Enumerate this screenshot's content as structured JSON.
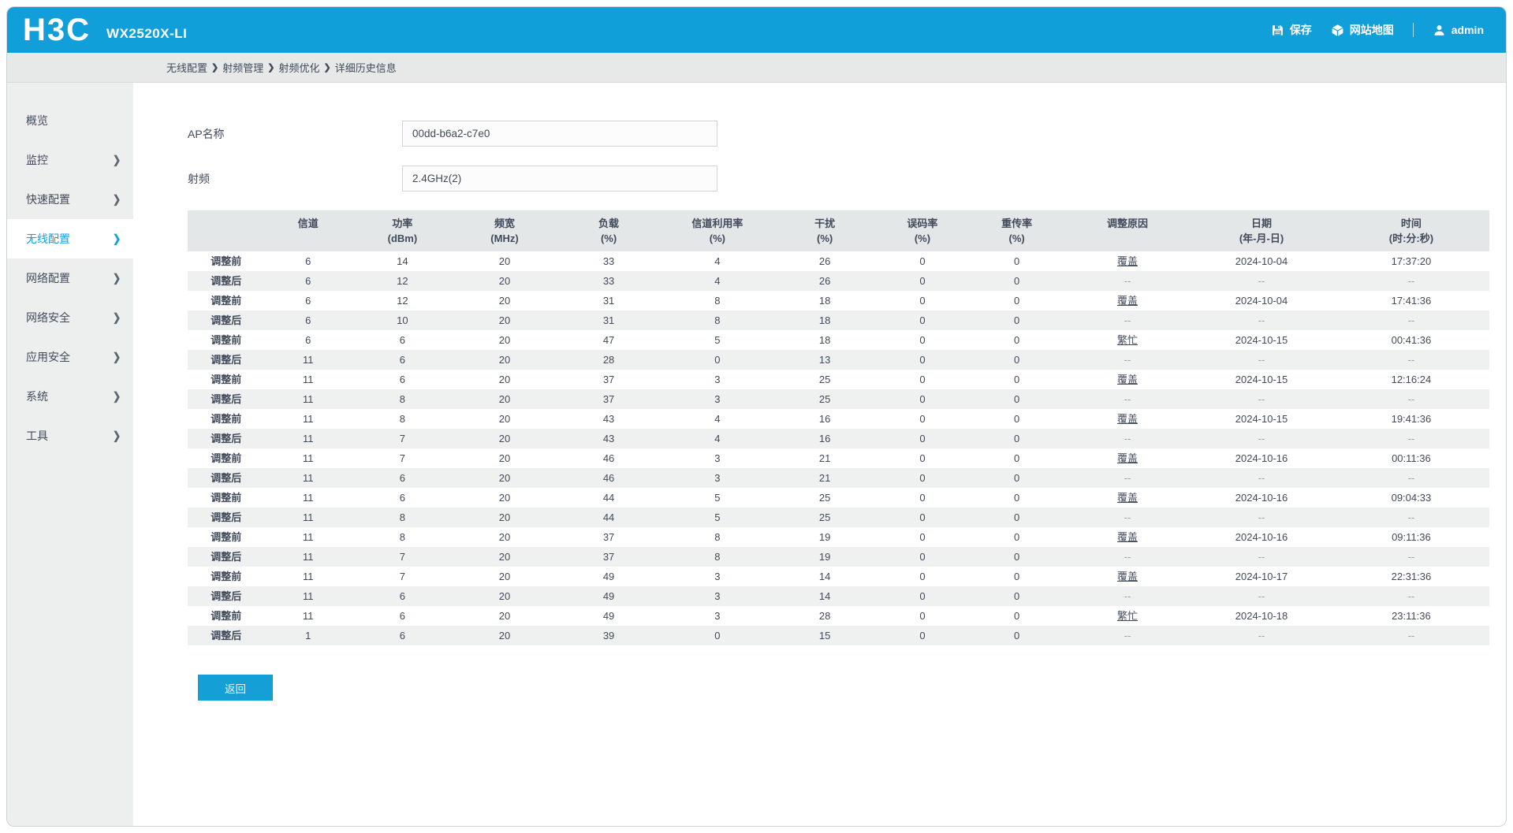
{
  "header": {
    "logo_text": "H3C",
    "device_model": "WX2520X-LI",
    "save_label": "保存",
    "sitemap_label": "网站地图",
    "username": "admin"
  },
  "icons": {
    "chevron": "❯",
    "save": "floppy-disk-icon",
    "sitemap": "cube-icon",
    "user": "person-icon"
  },
  "breadcrumb": {
    "separator": "❯",
    "items": [
      "无线配置",
      "射频管理",
      "射频优化",
      "详细历史信息"
    ]
  },
  "sidebar": {
    "items": [
      {
        "id": "overview",
        "label": "概览",
        "has_arrow": false,
        "active": false
      },
      {
        "id": "monitor",
        "label": "监控",
        "has_arrow": true,
        "active": false
      },
      {
        "id": "quick-config",
        "label": "快速配置",
        "has_arrow": true,
        "active": false
      },
      {
        "id": "wireless-config",
        "label": "无线配置",
        "has_arrow": true,
        "active": true
      },
      {
        "id": "network-config",
        "label": "网络配置",
        "has_arrow": true,
        "active": false
      },
      {
        "id": "network-security",
        "label": "网络安全",
        "has_arrow": true,
        "active": false
      },
      {
        "id": "app-security",
        "label": "应用安全",
        "has_arrow": true,
        "active": false
      },
      {
        "id": "system",
        "label": "系统",
        "has_arrow": true,
        "active": false
      },
      {
        "id": "tools",
        "label": "工具",
        "has_arrow": true,
        "active": false
      }
    ]
  },
  "form": {
    "fields": [
      {
        "id": "ap-name",
        "label": "AP名称",
        "value": "00dd-b6a2-c7e0"
      },
      {
        "id": "radio",
        "label": "射频",
        "value": "2.4GHz(2)"
      }
    ]
  },
  "table": {
    "columns": [
      {
        "title": "",
        "unit": ""
      },
      {
        "title": "信道",
        "unit": ""
      },
      {
        "title": "功率",
        "unit": "(dBm)"
      },
      {
        "title": "频宽",
        "unit": "(MHz)"
      },
      {
        "title": "负载",
        "unit": "(%)"
      },
      {
        "title": "信道利用率",
        "unit": "(%)"
      },
      {
        "title": "干扰",
        "unit": "(%)"
      },
      {
        "title": "误码率",
        "unit": "(%)"
      },
      {
        "title": "重传率",
        "unit": "(%)"
      },
      {
        "title": "调整原因",
        "unit": ""
      },
      {
        "title": "日期",
        "unit": "(年-月-日)"
      },
      {
        "title": "时间",
        "unit": "(时:分:秒)"
      }
    ],
    "col_widths_percent": [
      5.9,
      6.7,
      7.8,
      7.9,
      8.1,
      8.6,
      7.9,
      7.1,
      7.4,
      9.6,
      11.0,
      12.0
    ],
    "rows": [
      [
        "调整前",
        "6",
        "14",
        "20",
        "33",
        "4",
        "26",
        "0",
        "0",
        "覆盖",
        "2024-10-04",
        "17:37:20"
      ],
      [
        "调整后",
        "6",
        "12",
        "20",
        "33",
        "4",
        "26",
        "0",
        "0",
        "--",
        "--",
        "--"
      ],
      [
        "调整前",
        "6",
        "12",
        "20",
        "31",
        "8",
        "18",
        "0",
        "0",
        "覆盖",
        "2024-10-04",
        "17:41:36"
      ],
      [
        "调整后",
        "6",
        "10",
        "20",
        "31",
        "8",
        "18",
        "0",
        "0",
        "--",
        "--",
        "--"
      ],
      [
        "调整前",
        "6",
        "6",
        "20",
        "47",
        "5",
        "18",
        "0",
        "0",
        "繁忙",
        "2024-10-15",
        "00:41:36"
      ],
      [
        "调整后",
        "11",
        "6",
        "20",
        "28",
        "0",
        "13",
        "0",
        "0",
        "--",
        "--",
        "--"
      ],
      [
        "调整前",
        "11",
        "6",
        "20",
        "37",
        "3",
        "25",
        "0",
        "0",
        "覆盖",
        "2024-10-15",
        "12:16:24"
      ],
      [
        "调整后",
        "11",
        "8",
        "20",
        "37",
        "3",
        "25",
        "0",
        "0",
        "--",
        "--",
        "--"
      ],
      [
        "调整前",
        "11",
        "8",
        "20",
        "43",
        "4",
        "16",
        "0",
        "0",
        "覆盖",
        "2024-10-15",
        "19:41:36"
      ],
      [
        "调整后",
        "11",
        "7",
        "20",
        "43",
        "4",
        "16",
        "0",
        "0",
        "--",
        "--",
        "--"
      ],
      [
        "调整前",
        "11",
        "7",
        "20",
        "46",
        "3",
        "21",
        "0",
        "0",
        "覆盖",
        "2024-10-16",
        "00:11:36"
      ],
      [
        "调整后",
        "11",
        "6",
        "20",
        "46",
        "3",
        "21",
        "0",
        "0",
        "--",
        "--",
        "--"
      ],
      [
        "调整前",
        "11",
        "6",
        "20",
        "44",
        "5",
        "25",
        "0",
        "0",
        "覆盖",
        "2024-10-16",
        "09:04:33"
      ],
      [
        "调整后",
        "11",
        "8",
        "20",
        "44",
        "5",
        "25",
        "0",
        "0",
        "--",
        "--",
        "--"
      ],
      [
        "调整前",
        "11",
        "8",
        "20",
        "37",
        "8",
        "19",
        "0",
        "0",
        "覆盖",
        "2024-10-16",
        "09:11:36"
      ],
      [
        "调整后",
        "11",
        "7",
        "20",
        "37",
        "8",
        "19",
        "0",
        "0",
        "--",
        "--",
        "--"
      ],
      [
        "调整前",
        "11",
        "7",
        "20",
        "49",
        "3",
        "14",
        "0",
        "0",
        "覆盖",
        "2024-10-17",
        "22:31:36"
      ],
      [
        "调整后",
        "11",
        "6",
        "20",
        "49",
        "3",
        "14",
        "0",
        "0",
        "--",
        "--",
        "--"
      ],
      [
        "调整前",
        "11",
        "6",
        "20",
        "49",
        "3",
        "28",
        "0",
        "0",
        "繁忙",
        "2024-10-18",
        "23:11:36"
      ],
      [
        "调整后",
        "1",
        "6",
        "20",
        "39",
        "0",
        "15",
        "0",
        "0",
        "--",
        "--",
        "--"
      ]
    ]
  },
  "back_button": {
    "label": "返回"
  },
  "colors": {
    "accent_blue": "#119FDA",
    "sidebar_bg": "#EDEFEF",
    "breadcrumb_bg": "#E7E9E9",
    "table_header_bg": "#E4E7E8",
    "stripe_bg": "#EFF1F1",
    "text_dark": "#414A5A"
  }
}
